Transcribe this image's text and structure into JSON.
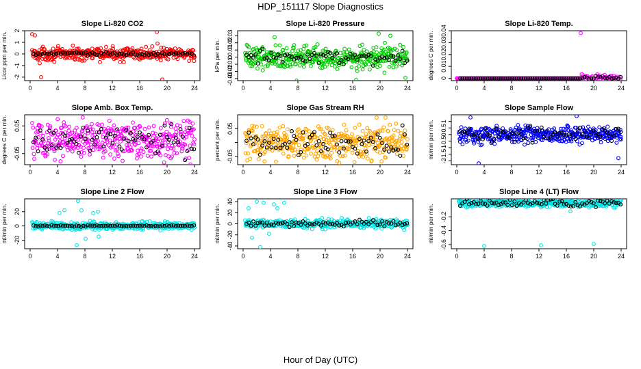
{
  "title": "HDP_151117  Slope Diagnostics",
  "xlabel": "Hour of Day (UTC)",
  "chart_data": [
    {
      "type": "scatter",
      "title": "Slope Li-820 CO2",
      "ylabel": "Licor ppm per min.",
      "color": "#ff0000",
      "xlim": [
        -0.8,
        24.8
      ],
      "ylim": [
        -2.3,
        2.0
      ],
      "xticks": [
        0,
        4,
        8,
        12,
        16,
        20,
        24
      ],
      "yticks": [
        -2,
        -1,
        0,
        1,
        2
      ],
      "spread": 0.4,
      "black_spread": 0.12,
      "outliers": [
        [
          0.3,
          1.7
        ],
        [
          0.7,
          1.6
        ],
        [
          1.4,
          -0.8
        ],
        [
          1.6,
          -2.0
        ],
        [
          18.5,
          1.9
        ],
        [
          19.3,
          -2.2
        ],
        [
          18.6,
          0.9
        ],
        [
          10.2,
          -0.7
        ]
      ]
    },
    {
      "type": "scatter",
      "title": "Slope Li-820 Pressure",
      "ylabel": "kPa per min.",
      "color": "#00cc00",
      "xlim": [
        -0.8,
        24.8
      ],
      "ylim": [
        -0.033,
        0.037
      ],
      "xticks": [
        0,
        4,
        8,
        12,
        16,
        20,
        24
      ],
      "yticks": [
        -0.03,
        -0.02,
        -0.01,
        0.0,
        0.01,
        0.02,
        0.03
      ],
      "spread": 0.012,
      "black_spread": 0.008,
      "outliers": [
        [
          19.8,
          0.033
        ],
        [
          16.5,
          -0.032
        ],
        [
          7.8,
          -0.033
        ],
        [
          23.7,
          -0.029
        ],
        [
          4.6,
          0.028
        ],
        [
          21.5,
          0.03
        ]
      ]
    },
    {
      "type": "scatter",
      "title": "Slope Li-820 Temp.",
      "ylabel": "degrees C per min.",
      "color": "#ff00ff",
      "xlim": [
        -0.8,
        24.8
      ],
      "ylim": [
        -0.002,
        0.04
      ],
      "xticks": [
        0,
        4,
        8,
        12,
        16,
        20,
        24
      ],
      "yticks": [
        0.0,
        0.01,
        0.02,
        0.03,
        0.04
      ],
      "flat": true,
      "flat_until": 18.2,
      "spread_after": 0.0018,
      "outliers": [
        [
          18.1,
          0.038
        ]
      ]
    },
    {
      "type": "scatter",
      "title": "Slope Amb. Box Temp.",
      "ylabel": "degrees C per min.",
      "color": "#ff00ff",
      "xlim": [
        -0.8,
        24.8
      ],
      "ylim": [
        -0.09,
        0.09
      ],
      "xticks": [
        0,
        4,
        8,
        12,
        16,
        20,
        24
      ],
      "yticks": [
        -0.05,
        0.0,
        0.05
      ],
      "ytick_labels": [
        "-0.05",
        "",
        "0.05"
      ],
      "spread": 0.055,
      "black_spread": 0.045,
      "outliers": []
    },
    {
      "type": "scatter",
      "title": "Slope Gas Stream RH",
      "ylabel": "percent per min.",
      "color": "#ffa500",
      "xlim": [
        -0.8,
        24.8
      ],
      "ylim": [
        -0.08,
        0.1
      ],
      "xticks": [
        0,
        4,
        8,
        12,
        16,
        20,
        24
      ],
      "yticks": [
        -0.05,
        0.0,
        0.05
      ],
      "ytick_labels": [
        "-0.05",
        "",
        "0.05"
      ],
      "spread": 0.045,
      "black_spread": 0.04,
      "outliers": [
        [
          19.5,
          0.09
        ],
        [
          20.8,
          0.09
        ]
      ]
    },
    {
      "type": "scatter",
      "title": "Slope Sample Flow",
      "ylabel": "ml/min per min.",
      "color": "#0000ff",
      "xlim": [
        -0.8,
        24.8
      ],
      "ylim": [
        -2.3,
        1.5
      ],
      "xticks": [
        0,
        4,
        8,
        12,
        16,
        20,
        24
      ],
      "yticks": [
        -2.0,
        -1.5,
        -1.0,
        -0.5,
        0.0,
        0.5,
        1.0
      ],
      "spread": 0.45,
      "black_spread": 0.5,
      "outliers": [
        [
          3.2,
          -2.2
        ],
        [
          23.6,
          -1.8
        ],
        [
          2.0,
          1.3
        ],
        [
          17.5,
          1.4
        ]
      ]
    },
    {
      "type": "scatter",
      "title": "Slope Line 2 Flow",
      "ylabel": "ml/min per min.",
      "color": "#00e5e5",
      "xlim": [
        -0.8,
        24.8
      ],
      "ylim": [
        -32,
        38
      ],
      "xticks": [
        0,
        4,
        8,
        12,
        16,
        20,
        24
      ],
      "yticks": [
        -20,
        0,
        20
      ],
      "spread": 4,
      "black_spread": 0.8,
      "outliers": [
        [
          7.0,
          35
        ],
        [
          7.5,
          22
        ],
        [
          6.8,
          -27
        ],
        [
          9.2,
          18
        ],
        [
          9.9,
          20
        ],
        [
          4.3,
          18
        ],
        [
          5.0,
          22
        ],
        [
          10.0,
          -15
        ],
        [
          8.1,
          -18
        ]
      ]
    },
    {
      "type": "scatter",
      "title": "Slope Line 3 Flow",
      "ylabel": "ml/min per min.",
      "color": "#00e5e5",
      "xlim": [
        -0.8,
        24.8
      ],
      "ylim": [
        -45,
        45
      ],
      "xticks": [
        0,
        4,
        8,
        12,
        16,
        20,
        24
      ],
      "yticks": [
        -40,
        -20,
        0,
        20,
        40
      ],
      "spread": 6,
      "black_spread": 4,
      "outliers": [
        [
          2.0,
          40
        ],
        [
          2.5,
          -42
        ],
        [
          3.0,
          38
        ],
        [
          3.8,
          -18
        ],
        [
          4.5,
          35
        ],
        [
          6.0,
          38
        ],
        [
          1.3,
          -25
        ],
        [
          5.0,
          28
        ],
        [
          0.8,
          28
        ]
      ]
    },
    {
      "type": "scatter",
      "title": "Slope Line 4 (LT) Flow",
      "ylabel": "ml/min per min.",
      "color": "#00e5e5",
      "xlim": [
        -0.8,
        24.8
      ],
      "ylim": [
        -0.66,
        0.06
      ],
      "xticks": [
        0,
        4,
        8,
        12,
        16,
        20,
        24
      ],
      "yticks": [
        -0.6,
        -0.4,
        -0.2
      ],
      "spread": 0.04,
      "black_spread": 0.04,
      "outliers": [
        [
          4.0,
          -0.62
        ],
        [
          12.3,
          -0.61
        ],
        [
          20.0,
          -0.59
        ],
        [
          16.6,
          -0.12
        ]
      ]
    }
  ]
}
